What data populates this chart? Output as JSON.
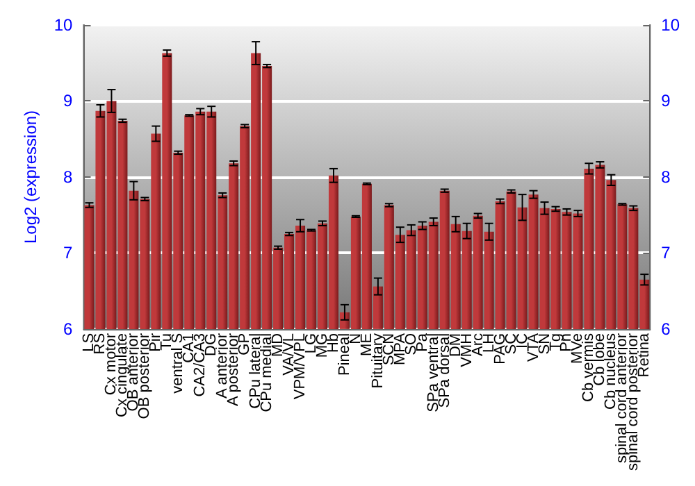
{
  "chart_data": {
    "type": "bar",
    "ylabel": "Log2 (expression)",
    "categories": [
      "LS",
      "RS",
      "Cx motor",
      "Cx cingulate",
      "OB anterior",
      "OB posterior",
      "Pir",
      "Tu",
      "ventral S",
      "CA1",
      "CA2/CA3",
      "DG",
      "A anterior",
      "A posterior",
      "GP",
      "CPu lateral",
      "CPu medial",
      "MD",
      "VA/VL",
      "VPM/VPL",
      "LG",
      "MG",
      "Hb",
      "Pineal",
      "N",
      "ME",
      "Pituitary",
      "SCN",
      "MPA",
      "SO",
      "Pa",
      "SPa ventral",
      "SPa dorsal",
      "DM",
      "VMH",
      "Arc",
      "LH",
      "PAG",
      "SC",
      "IC",
      "VTA",
      "SN",
      "Tg",
      "Pn",
      "MVe",
      "Cb vermis",
      "Cb lobe",
      "Cb nucleus",
      "spinal cord anterior",
      "spinal cord posterior",
      "Retina"
    ],
    "values": [
      7.63,
      8.87,
      9.0,
      8.74,
      7.82,
      7.71,
      8.57,
      9.63,
      8.32,
      8.81,
      8.86,
      8.86,
      7.76,
      8.18,
      8.67,
      9.63,
      9.46,
      7.07,
      7.25,
      7.36,
      7.3,
      7.39,
      8.02,
      6.22,
      7.48,
      7.91,
      6.56,
      7.63,
      7.24,
      7.3,
      7.36,
      7.41,
      7.82,
      7.38,
      7.29,
      7.49,
      7.28,
      7.68,
      7.81,
      7.6,
      7.77,
      7.59,
      7.58,
      7.54,
      7.52,
      8.11,
      8.16,
      7.96,
      7.64,
      7.59,
      6.65
    ],
    "errors": [
      0.03,
      0.08,
      0.15,
      0.02,
      0.12,
      0.02,
      0.1,
      0.04,
      0.02,
      0.01,
      0.04,
      0.07,
      0.03,
      0.03,
      0.02,
      0.15,
      0.02,
      0.02,
      0.02,
      0.08,
      0.01,
      0.03,
      0.09,
      0.1,
      0.01,
      0.01,
      0.11,
      0.02,
      0.1,
      0.07,
      0.05,
      0.05,
      0.02,
      0.1,
      0.1,
      0.03,
      0.11,
      0.03,
      0.02,
      0.17,
      0.05,
      0.08,
      0.03,
      0.04,
      0.04,
      0.07,
      0.04,
      0.07,
      0.01,
      0.03,
      0.07
    ],
    "color": "#c0393b",
    "ylim": [
      6,
      10
    ],
    "yticks": [
      6,
      7,
      8,
      9,
      10
    ],
    "y2lim": [
      6,
      10
    ],
    "y2ticks": [
      6,
      7,
      8,
      9,
      10
    ],
    "grid": "y"
  }
}
